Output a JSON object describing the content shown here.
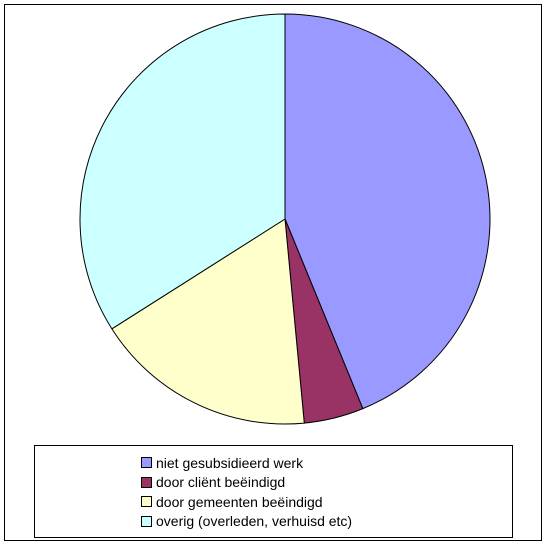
{
  "chart_data": {
    "type": "pie",
    "title": "",
    "slices": [
      {
        "label": "niet gesubsidieerd werk",
        "value": 43.8,
        "color": "#9999FF"
      },
      {
        "label": "door cliënt beëindigd",
        "value": 4.7,
        "color": "#993366"
      },
      {
        "label": "door gemeenten beëindigd",
        "value": 17.5,
        "color": "#FFFFCC"
      },
      {
        "label": "overig (overleden, verhuisd etc)",
        "value": 34.0,
        "color": "#CCFFFF"
      }
    ],
    "start_angle_deg": 0,
    "direction": "clockwise",
    "legend_placement": "bottom"
  }
}
